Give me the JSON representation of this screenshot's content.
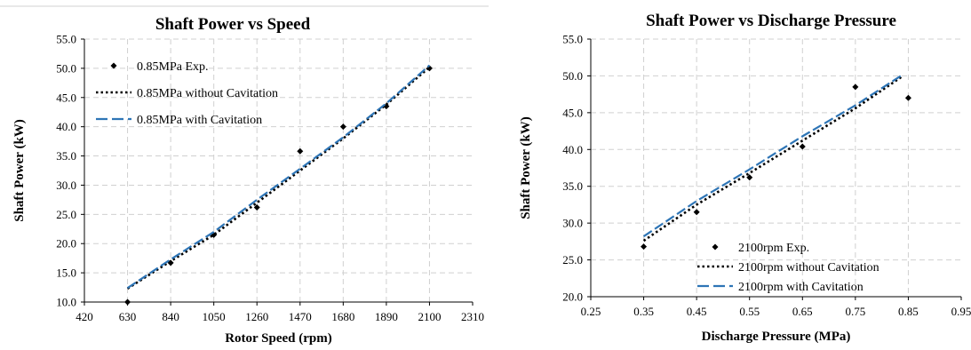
{
  "chart_data": [
    {
      "type": "line",
      "title": "Shaft Power vs Speed",
      "xlabel": "Rotor Speed (rpm)",
      "ylabel": "Shaft Power (kW)",
      "xlim": [
        420,
        2310
      ],
      "ylim": [
        10.0,
        55.0
      ],
      "xticks": [
        "420",
        "630",
        "840",
        "1050",
        "1260",
        "1470",
        "1680",
        "1890",
        "2100",
        "2310"
      ],
      "yticks": [
        "10.0",
        "15.0",
        "20.0",
        "25.0",
        "30.0",
        "35.0",
        "40.0",
        "45.0",
        "50.0",
        "55.0"
      ],
      "grid": true,
      "legend_position": "top-left",
      "series": [
        {
          "name": "0.85MPa Exp.",
          "style": "markers",
          "color": "#000000",
          "x": [
            630,
            840,
            1050,
            1260,
            1470,
            1680,
            1890,
            2100
          ],
          "y": [
            10.0,
            16.7,
            21.5,
            26.2,
            35.8,
            40.0,
            43.5,
            50.0
          ]
        },
        {
          "name": "0.85MPa without Cavitation",
          "style": "dotted",
          "color": "#000000",
          "x": [
            630,
            840,
            1050,
            1260,
            1470,
            1680,
            1890,
            2100
          ],
          "y": [
            12.3,
            17.0,
            21.5,
            27.0,
            32.5,
            38.0,
            43.8,
            50.2
          ]
        },
        {
          "name": "0.85MPa with Cavitation",
          "style": "dashed",
          "color": "#2e75b6",
          "x": [
            630,
            840,
            1050,
            1260,
            1470,
            1680,
            1890,
            2100
          ],
          "y": [
            12.4,
            17.3,
            22.0,
            27.5,
            32.8,
            38.2,
            44.0,
            50.5
          ]
        }
      ]
    },
    {
      "type": "line",
      "title": "Shaft Power vs Discharge Pressure",
      "xlabel": "Discharge Pressure (MPa)",
      "ylabel": "Shaft Power (kW)",
      "xlim": [
        0.25,
        0.95
      ],
      "ylim": [
        20.0,
        55.0
      ],
      "xticks": [
        "0.25",
        "0.35",
        "0.45",
        "0.55",
        "0.65",
        "0.75",
        "0.85",
        "0.95"
      ],
      "yticks": [
        "20.0",
        "25.0",
        "30.0",
        "35.0",
        "40.0",
        "45.0",
        "50.0",
        "55.0"
      ],
      "grid": true,
      "legend_position": "bottom-right",
      "series": [
        {
          "name": "2100rpm Exp.",
          "style": "markers",
          "color": "#000000",
          "x": [
            0.35,
            0.45,
            0.55,
            0.65,
            0.75,
            0.85
          ],
          "y": [
            26.8,
            31.5,
            36.2,
            40.4,
            48.5,
            47.0
          ]
        },
        {
          "name": "2100rpm without Cavitation",
          "style": "dotted",
          "color": "#000000",
          "x": [
            0.35,
            0.45,
            0.55,
            0.65,
            0.75,
            0.84
          ],
          "y": [
            27.6,
            32.5,
            36.8,
            41.2,
            45.6,
            50.0
          ]
        },
        {
          "name": "2100rpm with Cavitation",
          "style": "dashed",
          "color": "#2e75b6",
          "x": [
            0.35,
            0.45,
            0.55,
            0.65,
            0.75,
            0.84
          ],
          "y": [
            28.2,
            33.0,
            37.3,
            41.8,
            46.0,
            50.2
          ]
        }
      ]
    }
  ]
}
